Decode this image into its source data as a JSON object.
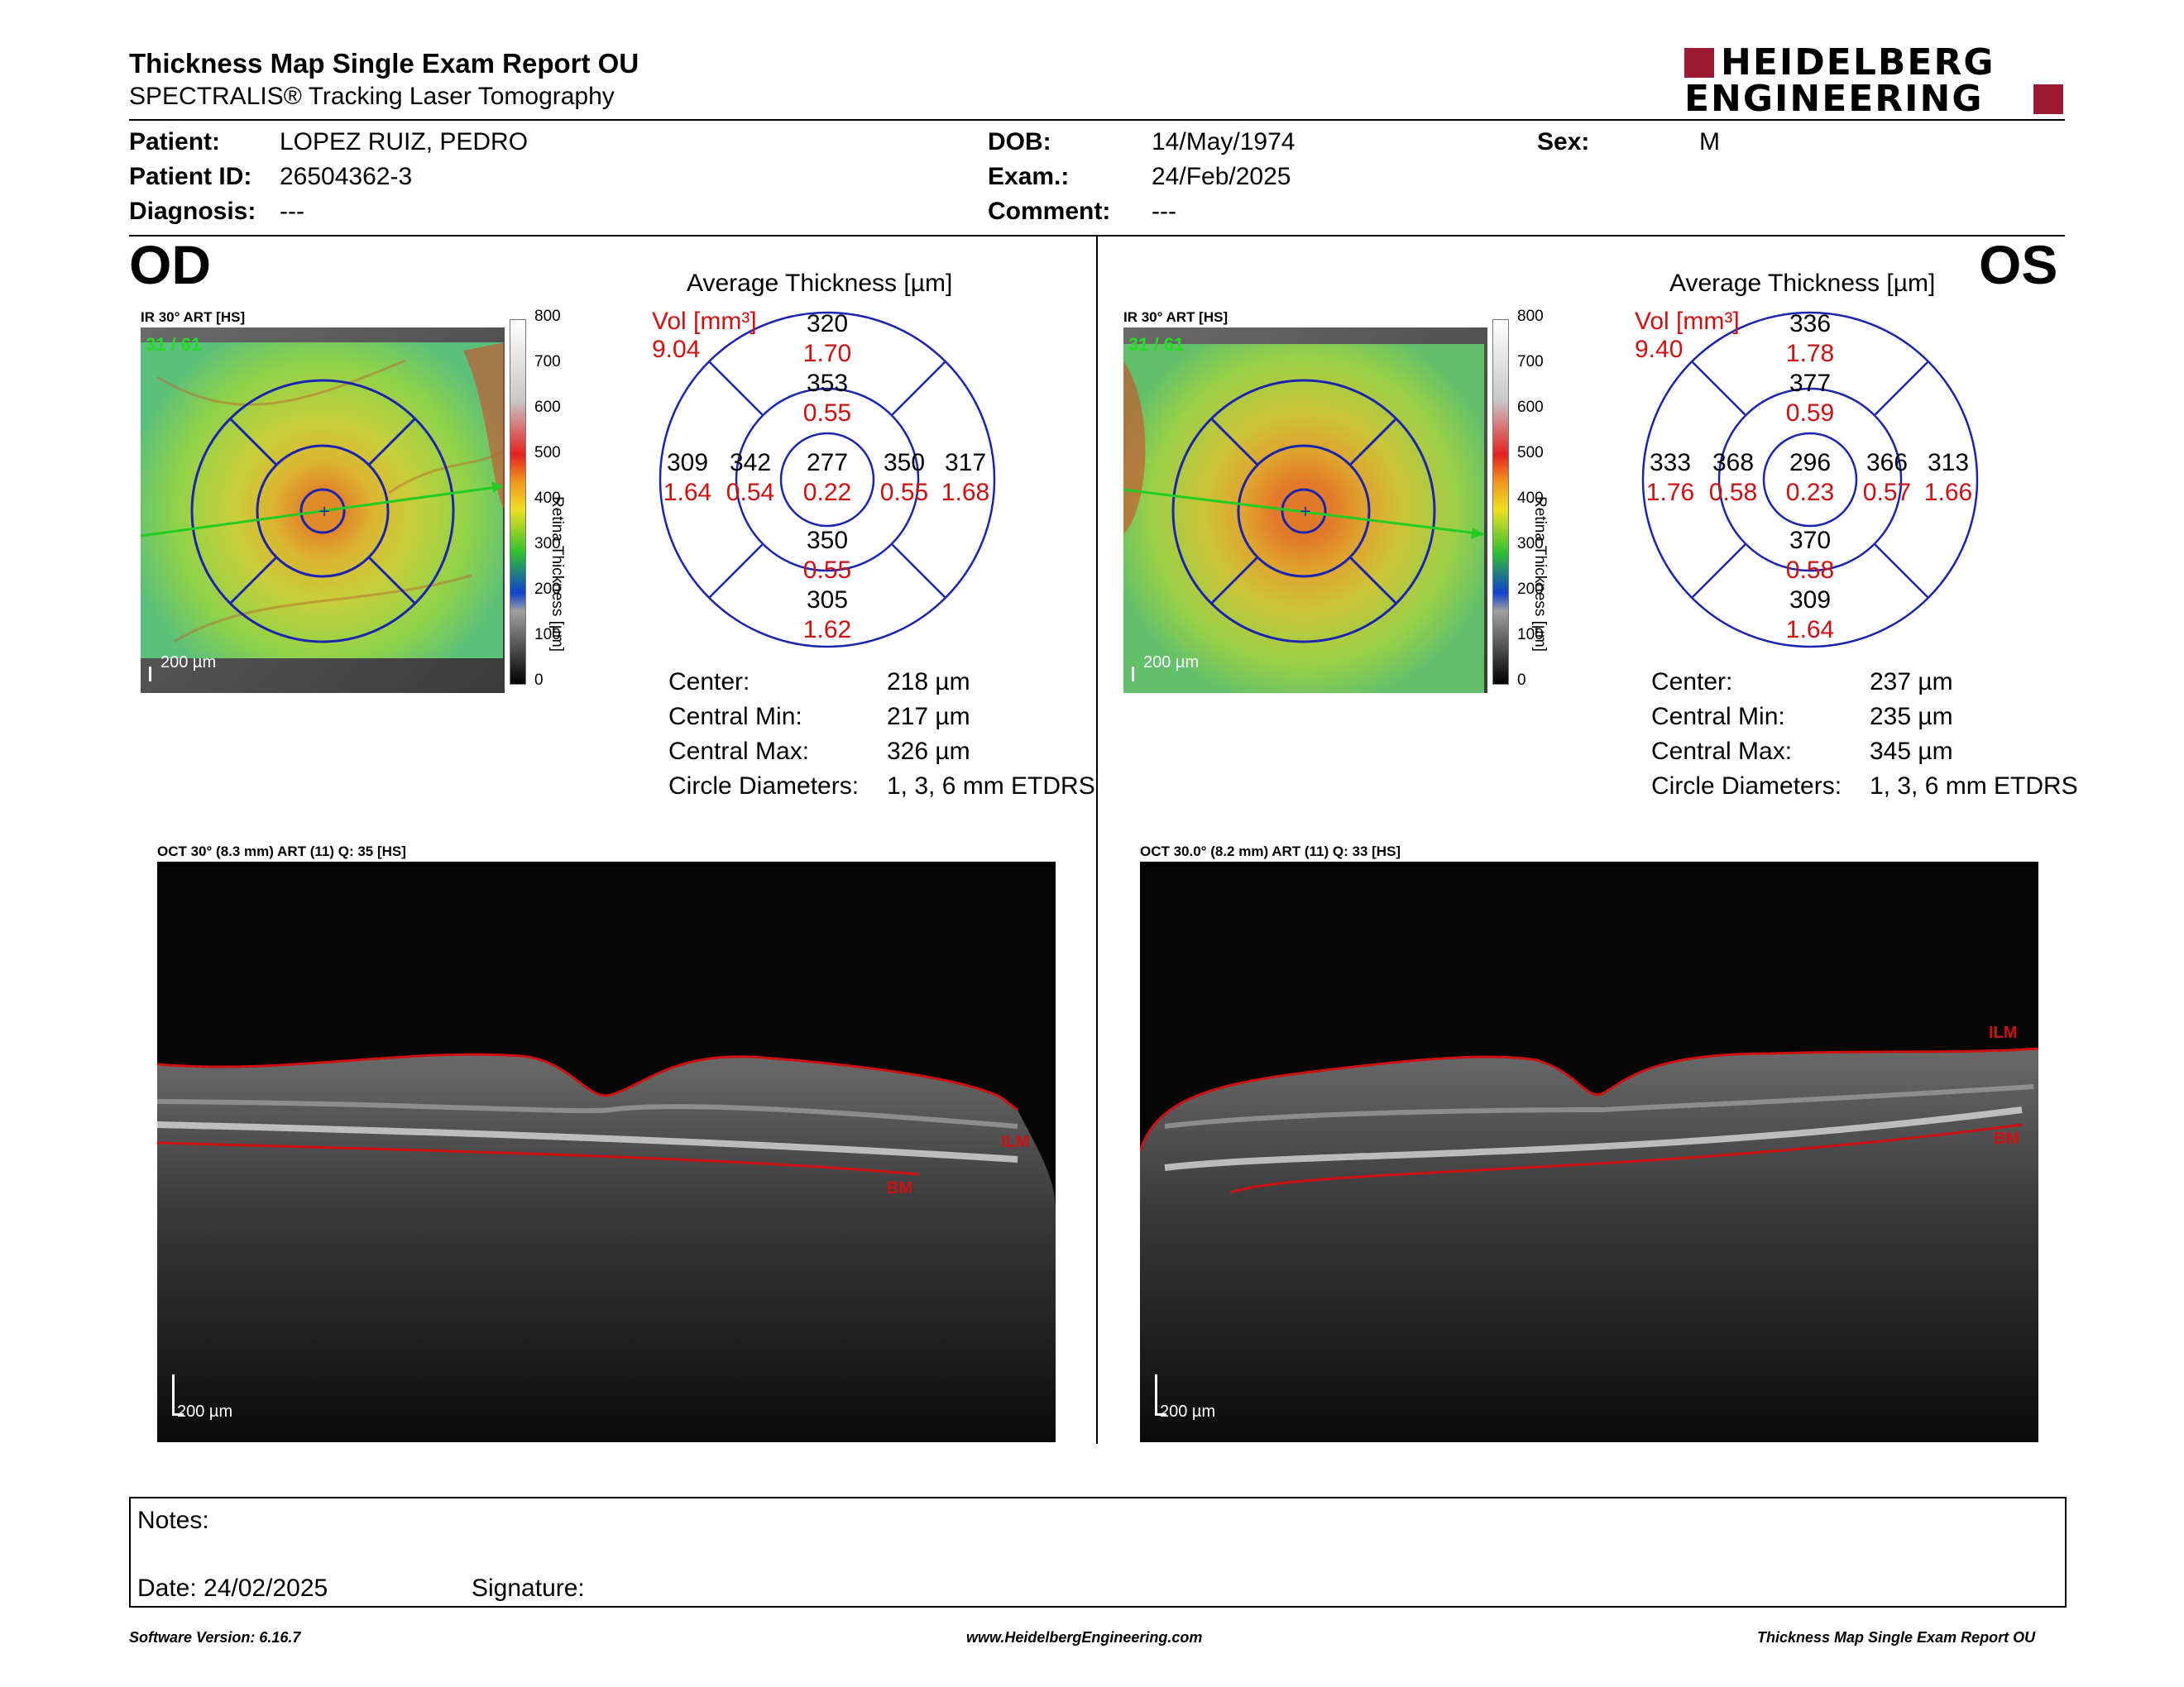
{
  "header": {
    "title": "Thickness Map Single Exam Report OU",
    "subtitle": "SPECTRALIS® Tracking Laser Tomography",
    "logo_line1": "HEIDELBERG",
    "logo_line2": "ENGINEERING",
    "brand_color": "#9b1b30"
  },
  "patient": {
    "patient_label": "Patient:",
    "patient_value": "LOPEZ RUIZ, PEDRO",
    "id_label": "Patient ID:",
    "id_value": "26504362-3",
    "diagnosis_label": "Diagnosis:",
    "diagnosis_value": "---",
    "dob_label": "DOB:",
    "dob_value": "14/May/1974",
    "exam_label": "Exam.:",
    "exam_value": "24/Feb/2025",
    "comment_label": "Comment:",
    "comment_value": "---",
    "sex_label": "Sex:",
    "sex_value": "M"
  },
  "od": {
    "eye_label": "OD",
    "ir_label": "IR 30° ART [HS]",
    "frame_count": "31 / 61",
    "scale_bar": "200 µm",
    "colorbar_ticks": [
      "800",
      "700",
      "600",
      "500",
      "400",
      "300",
      "200",
      "100",
      "0"
    ],
    "colorbar_title": "Retina  Thickness [µm]",
    "avg_title": "Average Thickness [µm]",
    "vol_label": "Vol [mm³]",
    "vol_value": "9.04",
    "outer_sup": {
      "t": "320",
      "v": "1.70"
    },
    "inner_sup": {
      "t": "353",
      "v": "0.55"
    },
    "outer_nasal_left": {
      "t": "309",
      "v": "1.64"
    },
    "inner_left": {
      "t": "342",
      "v": "0.54"
    },
    "center": {
      "t": "277",
      "v": "0.22"
    },
    "inner_right": {
      "t": "350",
      "v": "0.55"
    },
    "outer_right": {
      "t": "317",
      "v": "1.68"
    },
    "inner_inf": {
      "t": "350",
      "v": "0.55"
    },
    "outer_inf": {
      "t": "305",
      "v": "1.62"
    },
    "stats": [
      {
        "label": "Center:",
        "value": "218 µm"
      },
      {
        "label": "Central Min:",
        "value": "217 µm"
      },
      {
        "label": "Central Max:",
        "value": "326 µm"
      },
      {
        "label": "Circle Diameters:",
        "value": "1, 3, 6 mm ETDRS"
      }
    ],
    "oct_label": "OCT 30° (8.3 mm) ART (11) Q: 35 [HS]",
    "ilm": "ILM",
    "bm": "BM",
    "oct_scale": "200 µm"
  },
  "os": {
    "eye_label": "OS",
    "ir_label": "IR 30° ART [HS]",
    "frame_count": "31 / 61",
    "scale_bar": "200 µm",
    "colorbar_ticks": [
      "800",
      "700",
      "600",
      "500",
      "400",
      "300",
      "200",
      "100",
      "0"
    ],
    "colorbar_title": "Retina  Thickness [µm]",
    "avg_title": "Average Thickness [µm]",
    "vol_label": "Vol [mm³]",
    "vol_value": "9.40",
    "outer_sup": {
      "t": "336",
      "v": "1.78"
    },
    "inner_sup": {
      "t": "377",
      "v": "0.59"
    },
    "outer_nasal_left": {
      "t": "333",
      "v": "1.76"
    },
    "inner_left": {
      "t": "368",
      "v": "0.58"
    },
    "center": {
      "t": "296",
      "v": "0.23"
    },
    "inner_right": {
      "t": "366",
      "v": "0.57"
    },
    "outer_right": {
      "t": "313",
      "v": "1.66"
    },
    "inner_inf": {
      "t": "370",
      "v": "0.58"
    },
    "outer_inf": {
      "t": "309",
      "v": "1.64"
    },
    "stats": [
      {
        "label": "Center:",
        "value": "237 µm"
      },
      {
        "label": "Central Min:",
        "value": "235 µm"
      },
      {
        "label": "Central Max:",
        "value": "345 µm"
      },
      {
        "label": "Circle Diameters:",
        "value": "1, 3, 6 mm ETDRS"
      }
    ],
    "oct_label": "OCT 30.0° (8.2 mm) ART (11) Q: 33 [HS]",
    "ilm": "ILM",
    "bm": "BM",
    "oct_scale": "200 µm"
  },
  "notes": {
    "notes_label": "Notes:",
    "date_label": "Date: 24/02/2025",
    "signature_label": "Signature:"
  },
  "footer": {
    "version": "Software Version: 6.16.7",
    "url": "www.HeidelbergEngineering.com",
    "report": "Thickness Map Single Exam Report OU"
  }
}
